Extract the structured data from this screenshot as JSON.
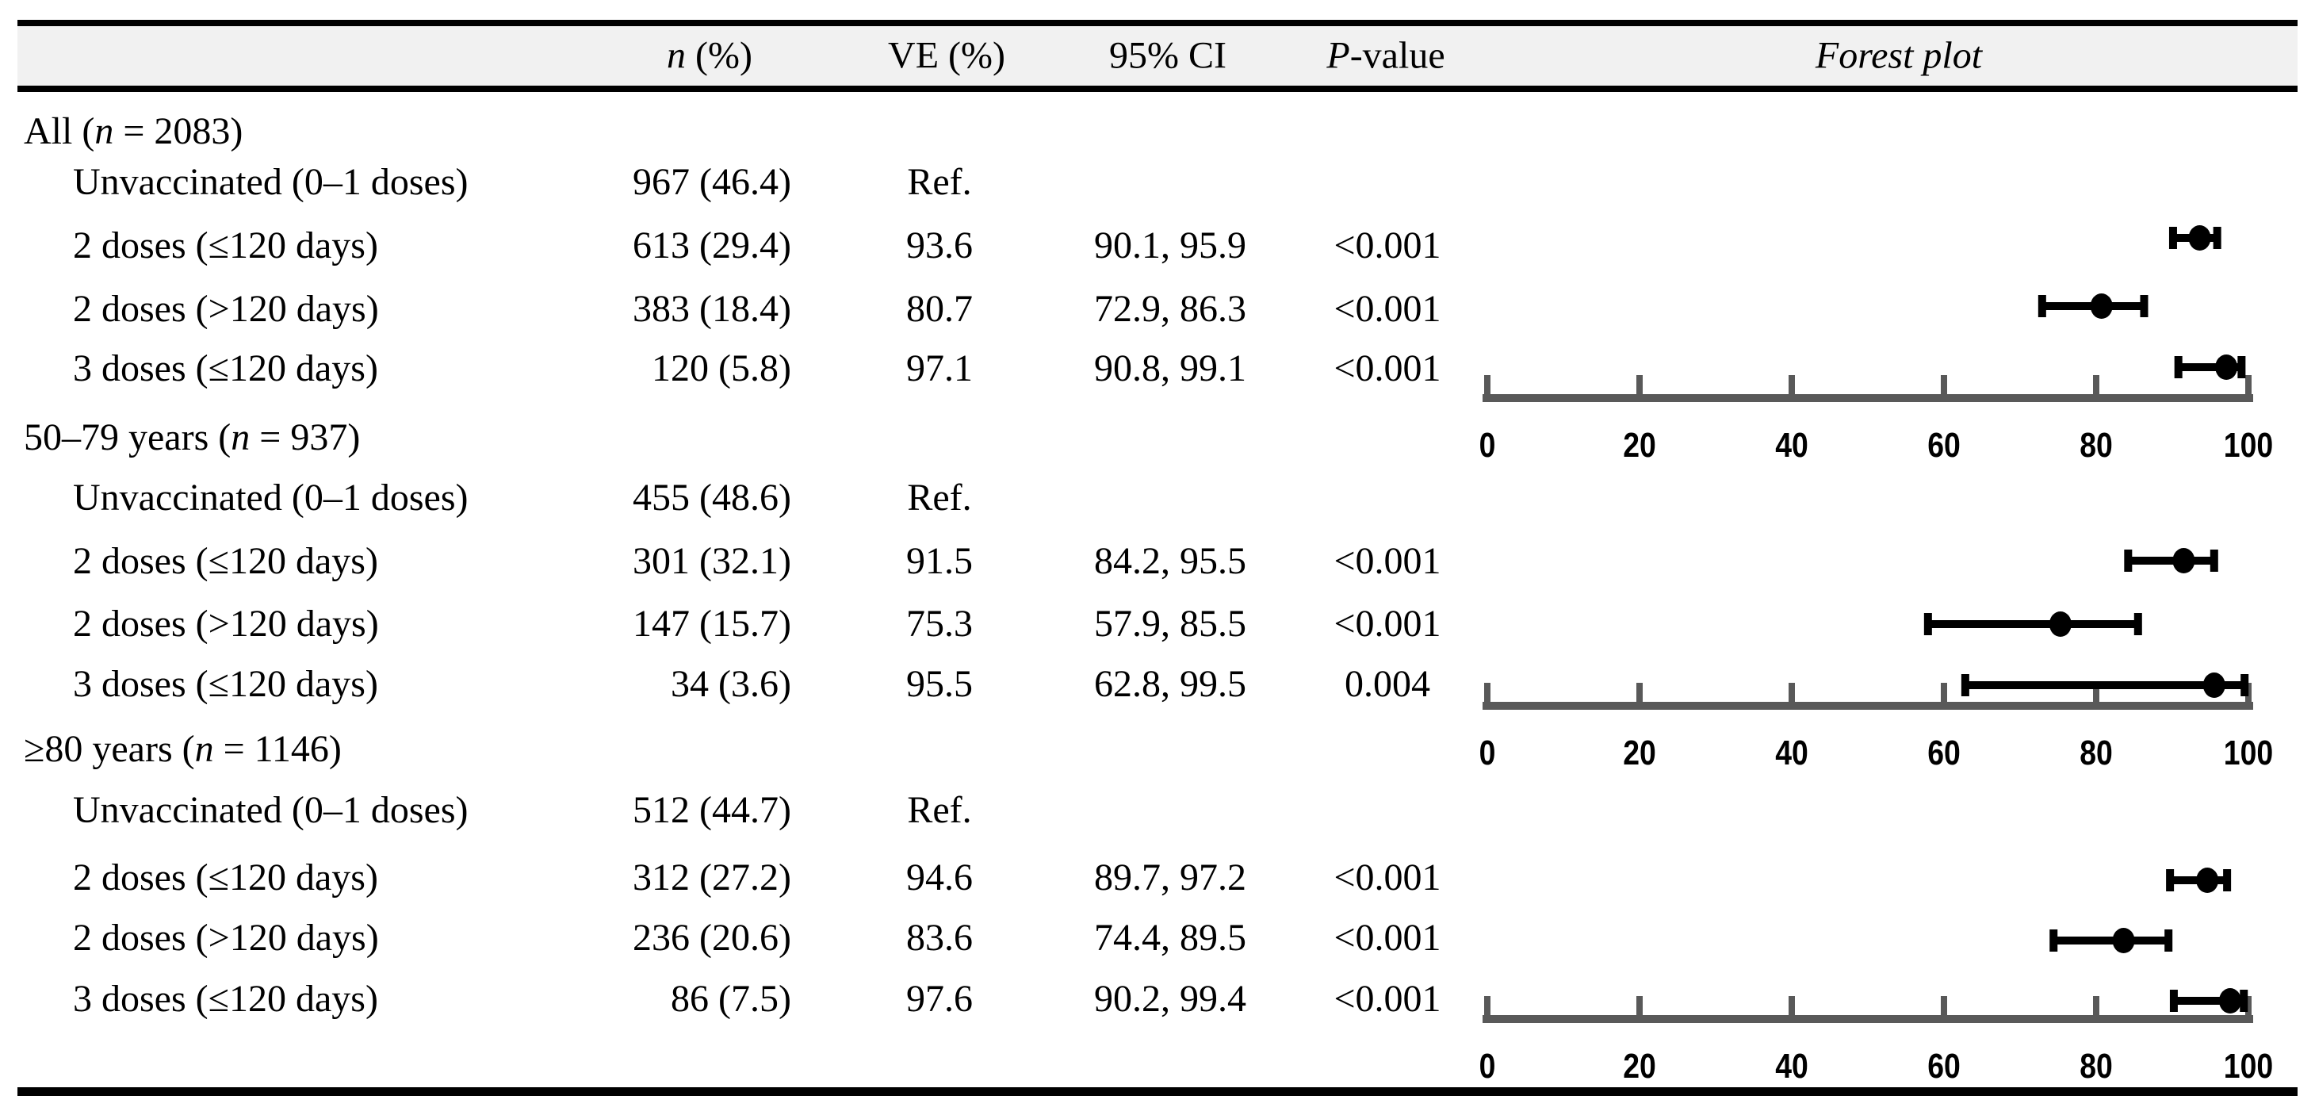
{
  "header": {
    "n_italic": "n",
    "n_rest": " (%)",
    "ve": "VE (%)",
    "ci": "95% CI",
    "p_italic": "P",
    "p_rest": "-value",
    "forest": "Forest plot"
  },
  "colors": {
    "header_bg": "#f1f1f1",
    "border": "#000000",
    "axis": "#595959",
    "marker": "#000000",
    "text": "#000000"
  },
  "table": {
    "groups": [
      {
        "label_prefix": "All (",
        "n_symbol": "n",
        "label_suffix": " = 2083)",
        "rows": [
          {
            "label": "Unvaccinated (0–1 doses)",
            "n_pct": "967 (46.4)",
            "ve": "Ref.",
            "ci": "",
            "p": ""
          },
          {
            "label": "2 doses (≤120 days)",
            "n_pct": "613 (29.4)",
            "ve": "93.6",
            "ci": "90.1, 95.9",
            "p": "<0.001"
          },
          {
            "label": "2 doses (>120 days)",
            "n_pct": "383 (18.4)",
            "ve": "80.7",
            "ci": "72.9, 86.3",
            "p": "<0.001"
          },
          {
            "label": "3 doses (≤120 days)",
            "n_pct": "120 (5.8)",
            "ve": "97.1",
            "ci": "90.8, 99.1",
            "p": "<0.001"
          }
        ]
      },
      {
        "label_prefix": "50–79 years (",
        "n_symbol": "n",
        "label_suffix": " = 937)",
        "rows": [
          {
            "label": "Unvaccinated (0–1 doses)",
            "n_pct": "455 (48.6)",
            "ve": "Ref.",
            "ci": "",
            "p": ""
          },
          {
            "label": "2 doses (≤120 days)",
            "n_pct": "301 (32.1)",
            "ve": "91.5",
            "ci": "84.2, 95.5",
            "p": "<0.001"
          },
          {
            "label": "2 doses (>120 days)",
            "n_pct": "147 (15.7)",
            "ve": "75.3",
            "ci": "57.9, 85.5",
            "p": "<0.001"
          },
          {
            "label": "3 doses (≤120 days)",
            "n_pct": "34 (3.6)",
            "ve": "95.5",
            "ci": "62.8, 99.5",
            "p": "0.004"
          }
        ]
      },
      {
        "label_prefix": "≥80 years (",
        "n_symbol": "n",
        "label_suffix": " = 1146)",
        "rows": [
          {
            "label": "Unvaccinated (0–1 doses)",
            "n_pct": "512 (44.7)",
            "ve": "Ref.",
            "ci": "",
            "p": ""
          },
          {
            "label": "2 doses (≤120 days)",
            "n_pct": "312 (27.2)",
            "ve": "94.6",
            "ci": "89.7, 97.2",
            "p": "<0.001"
          },
          {
            "label": "2 doses (>120 days)",
            "n_pct": "236 (20.6)",
            "ve": "83.6",
            "ci": "74.4, 89.5",
            "p": "<0.001"
          },
          {
            "label": "3 doses (≤120 days)",
            "n_pct": "86 (7.5)",
            "ve": "97.6",
            "ci": "90.2, 99.4",
            "p": "<0.001"
          }
        ]
      }
    ]
  },
  "chart_data": {
    "type": "scatter",
    "variant": "forest",
    "title": "Forest plot",
    "xlabel": "VE (%)",
    "xlim": [
      0,
      100
    ],
    "xticks": [
      0,
      20,
      40,
      60,
      80,
      100
    ],
    "grid": false,
    "panels": [
      {
        "group": "All (n = 2083)",
        "points": [
          {
            "label": "2 doses (≤120 days)",
            "ve": 93.6,
            "ci_low": 90.1,
            "ci_high": 95.9
          },
          {
            "label": "2 doses (>120 days)",
            "ve": 80.7,
            "ci_low": 72.9,
            "ci_high": 86.3
          },
          {
            "label": "3 doses (≤120 days)",
            "ve": 97.1,
            "ci_low": 90.8,
            "ci_high": 99.1
          }
        ]
      },
      {
        "group": "50–79 years (n = 937)",
        "points": [
          {
            "label": "2 doses (≤120 days)",
            "ve": 91.5,
            "ci_low": 84.2,
            "ci_high": 95.5
          },
          {
            "label": "2 doses (>120 days)",
            "ve": 75.3,
            "ci_low": 57.9,
            "ci_high": 85.5
          },
          {
            "label": "3 doses (≤120 days)",
            "ve": 95.5,
            "ci_low": 62.8,
            "ci_high": 99.5
          }
        ]
      },
      {
        "group": "≥80 years (n = 1146)",
        "points": [
          {
            "label": "2 doses (≤120 days)",
            "ve": 94.6,
            "ci_low": 89.7,
            "ci_high": 97.2
          },
          {
            "label": "2 doses (>120 days)",
            "ve": 83.6,
            "ci_low": 74.4,
            "ci_high": 89.5
          },
          {
            "label": "3 doses (≤120 days)",
            "ve": 97.6,
            "ci_low": 90.2,
            "ci_high": 99.4
          }
        ]
      }
    ]
  }
}
